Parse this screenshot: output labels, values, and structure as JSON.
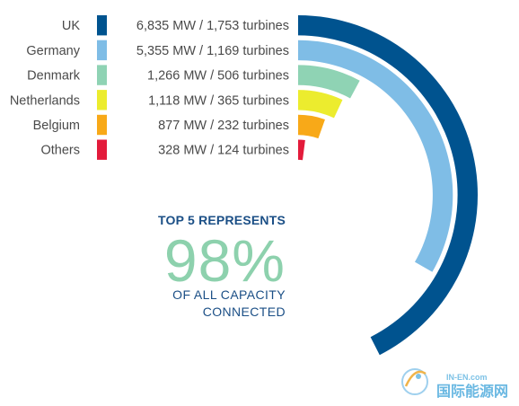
{
  "chart_data": {
    "type": "radial-bar",
    "series": [
      {
        "name": "UK",
        "capacity_mw": 6835,
        "capacity_label": "6,835 MW",
        "turbines": 1753,
        "turbines_label": "1,753 turbines",
        "color": "#00538f"
      },
      {
        "name": "Germany",
        "capacity_mw": 5355,
        "capacity_label": "5,355 MW",
        "turbines": 1169,
        "turbines_label": "1,169 turbines",
        "color": "#7fbde6"
      },
      {
        "name": "Denmark",
        "capacity_mw": 1266,
        "capacity_label": "1,266 MW",
        "turbines": 506,
        "turbines_label": "506 turbines",
        "color": "#8fd3b4"
      },
      {
        "name": "Netherlands",
        "capacity_mw": 1118,
        "capacity_label": "1,118 MW",
        "turbines": 365,
        "turbines_label": "365 turbines",
        "color": "#ecec2e"
      },
      {
        "name": "Belgium",
        "capacity_mw": 877,
        "capacity_label": "877 MW",
        "turbines": 232,
        "turbines_label": "232 turbines",
        "color": "#f8a918"
      },
      {
        "name": "Others",
        "capacity_mw": 328,
        "capacity_label": "328 MW",
        "turbines": 124,
        "turbines_label": "124 turbines",
        "color": "#e31b3b"
      }
    ],
    "separator": "/",
    "annotation": {
      "line1": "TOP 5 REPRESENTS",
      "percent": "98%",
      "line2": "OF ALL CAPACITY",
      "line3": "CONNECTED"
    },
    "annotation_colors": {
      "text": "#1b4f86",
      "percent": "#8dd1ad"
    }
  },
  "watermark": {
    "latin": "IN-EN.com",
    "chinese": "国际能源网"
  }
}
